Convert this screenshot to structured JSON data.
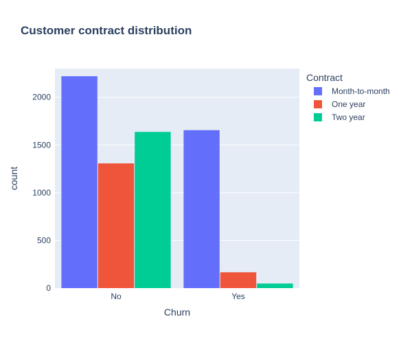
{
  "chart_data": {
    "type": "bar",
    "title": "Customer contract distribution",
    "xlabel": "Churn",
    "ylabel": "count",
    "categories": [
      "No",
      "Yes"
    ],
    "ylim": [
      0,
      2300
    ],
    "yticks": [
      0,
      500,
      1000,
      1500,
      2000
    ],
    "ytick_labels": [
      "0",
      "500",
      "1000",
      "1500",
      "2000"
    ],
    "grid": true,
    "legend": {
      "title": "Contract",
      "placement": "top-right"
    },
    "series": [
      {
        "name": "Month-to-month",
        "color": "#636efa",
        "values": [
          2220,
          1655
        ]
      },
      {
        "name": "One year",
        "color": "#ef553b",
        "values": [
          1307,
          166
        ]
      },
      {
        "name": "Two year",
        "color": "#00cc96",
        "values": [
          1637,
          48
        ]
      }
    ],
    "colors": {
      "plot_background": "#e5ecf6",
      "text": "#2a3f5f"
    }
  }
}
